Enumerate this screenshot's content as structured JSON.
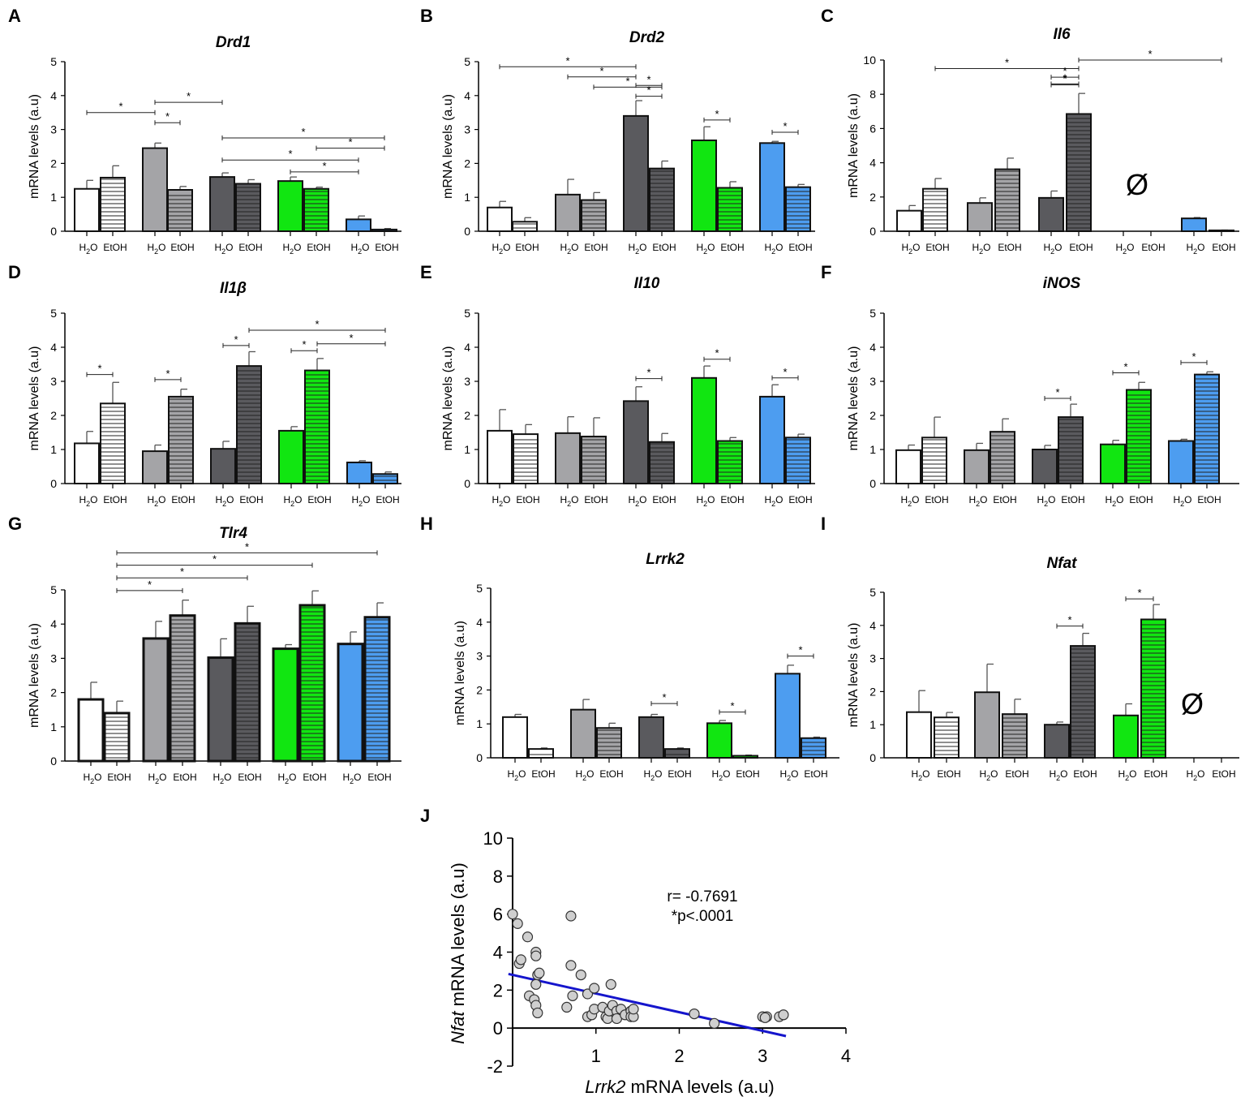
{
  "chart_data": [
    {
      "type": "bar",
      "panel": "A",
      "title": "Drd1",
      "ylabel": "mRNA levels (a.u)",
      "ylim": [
        0,
        5
      ],
      "ticks": [
        0,
        1,
        2,
        3,
        4,
        5
      ],
      "categories": [
        "H2O",
        "EtOH",
        "H2O",
        "EtOH",
        "H2O",
        "EtOH",
        "H2O",
        "EtOH",
        "H2O",
        "EtOH"
      ],
      "values": [
        1.25,
        1.58,
        2.45,
        1.22,
        1.6,
        1.4,
        1.48,
        1.25,
        0.35,
        0.05
      ],
      "errors": [
        0.25,
        0.35,
        0.15,
        0.1,
        0.12,
        0.12,
        0.12,
        0.05,
        0.1,
        0.03
      ],
      "sig": [
        [
          0,
          2,
          3.5
        ],
        [
          2,
          3,
          3.2
        ],
        [
          2,
          4,
          3.8
        ],
        [
          4,
          8,
          2.1
        ],
        [
          6,
          8,
          1.75
        ],
        [
          4,
          9,
          2.75
        ],
        [
          7,
          9,
          2.45
        ]
      ]
    },
    {
      "type": "bar",
      "panel": "B",
      "title": "Drd2",
      "ylabel": "mRNA levels (a.u)",
      "ylim": [
        0,
        5
      ],
      "ticks": [
        0,
        1,
        2,
        3,
        4,
        5
      ],
      "categories": [
        "H2O",
        "EtOH",
        "H2O",
        "EtOH",
        "H2O",
        "EtOH",
        "H2O",
        "EtOH",
        "H2O",
        "EtOH"
      ],
      "values": [
        0.7,
        0.28,
        1.08,
        0.92,
        3.4,
        1.85,
        2.68,
        1.28,
        2.6,
        1.3
      ],
      "errors": [
        0.18,
        0.12,
        0.45,
        0.22,
        0.45,
        0.22,
        0.4,
        0.18,
        0.05,
        0.08
      ],
      "sig": [
        [
          0,
          4,
          4.85
        ],
        [
          2,
          4,
          4.55
        ],
        [
          4,
          5,
          4.3
        ],
        [
          3,
          5,
          4.25
        ],
        [
          4,
          5,
          3.98
        ],
        [
          6,
          7,
          3.28
        ],
        [
          8,
          9,
          2.92
        ]
      ]
    },
    {
      "type": "bar",
      "panel": "C",
      "title": "Il6",
      "ylabel": "mRNA levels (a.u)",
      "ylim": [
        0,
        10
      ],
      "ticks": [
        0,
        2,
        4,
        6,
        8,
        10
      ],
      "categories": [
        "H2O",
        "EtOH",
        "H2O",
        "EtOH",
        "H2O",
        "EtOH",
        "H2O",
        "EtOH",
        "H2O",
        "EtOH"
      ],
      "values": [
        1.2,
        2.48,
        1.65,
        3.62,
        1.95,
        6.85,
        null,
        null,
        0.75,
        0.05
      ],
      "errors": [
        0.3,
        0.6,
        0.3,
        0.65,
        0.4,
        1.2,
        null,
        null,
        0.05,
        0.02
      ],
      "sig": [
        [
          1,
          5,
          9.5
        ],
        [
          4,
          5,
          9.0
        ],
        [
          4,
          5,
          8.55
        ],
        [
          5,
          9,
          10.0
        ],
        [
          4,
          5,
          8.6
        ]
      ],
      "empty_marker": "Ø"
    },
    {
      "type": "bar",
      "panel": "D",
      "title": "Il1β",
      "ylabel": "mRNA levels (a.u)",
      "ylim": [
        0,
        5
      ],
      "ticks": [
        0,
        1,
        2,
        3,
        4,
        5
      ],
      "categories": [
        "H2O",
        "EtOH",
        "H2O",
        "EtOH",
        "H2O",
        "EtOH",
        "H2O",
        "EtOH",
        "H2O",
        "EtOH"
      ],
      "values": [
        1.18,
        2.35,
        0.95,
        2.55,
        1.02,
        3.45,
        1.55,
        3.32,
        0.62,
        0.28
      ],
      "errors": [
        0.35,
        0.62,
        0.18,
        0.22,
        0.22,
        0.42,
        0.12,
        0.35,
        0.05,
        0.06
      ],
      "sig": [
        [
          0,
          1,
          3.2
        ],
        [
          2,
          3,
          3.05
        ],
        [
          4,
          5,
          4.05
        ],
        [
          5,
          9,
          4.5
        ],
        [
          6,
          7,
          3.9
        ],
        [
          7,
          9,
          4.1
        ]
      ]
    },
    {
      "type": "bar",
      "panel": "E",
      "title": "Il10",
      "ylabel": "mRNA levels (a.u)",
      "ylim": [
        0,
        5
      ],
      "ticks": [
        0,
        1,
        2,
        3,
        4,
        5
      ],
      "categories": [
        "H2O",
        "EtOH",
        "H2O",
        "EtOH",
        "H2O",
        "EtOH",
        "H2O",
        "EtOH",
        "H2O",
        "EtOH"
      ],
      "values": [
        1.55,
        1.45,
        1.48,
        1.38,
        2.42,
        1.22,
        3.1,
        1.25,
        2.55,
        1.35
      ],
      "errors": [
        0.62,
        0.28,
        0.48,
        0.55,
        0.42,
        0.25,
        0.35,
        0.1,
        0.35,
        0.1
      ],
      "sig": [
        [
          4,
          5,
          3.08
        ],
        [
          6,
          7,
          3.65
        ],
        [
          8,
          9,
          3.1
        ]
      ]
    },
    {
      "type": "bar",
      "panel": "F",
      "title": "iNOS",
      "ylabel": "mRNA levels (a.u)",
      "ylim": [
        0,
        5
      ],
      "ticks": [
        0,
        1,
        2,
        3,
        4,
        5
      ],
      "categories": [
        "H2O",
        "EtOH",
        "H2O",
        "EtOH",
        "H2O",
        "EtOH",
        "H2O",
        "EtOH",
        "H2O",
        "EtOH"
      ],
      "values": [
        0.98,
        1.35,
        0.98,
        1.52,
        1.0,
        1.95,
        1.15,
        2.75,
        1.25,
        3.2
      ],
      "errors": [
        0.15,
        0.6,
        0.2,
        0.38,
        0.12,
        0.38,
        0.12,
        0.22,
        0.05,
        0.08
      ],
      "sig": [
        [
          4,
          5,
          2.5
        ],
        [
          6,
          7,
          3.25
        ],
        [
          8,
          9,
          3.55
        ]
      ]
    },
    {
      "type": "bar",
      "panel": "G",
      "title": "Tlr4",
      "ylabel": "mRNA levels (a.u)",
      "ylim": [
        0,
        5
      ],
      "ticks": [
        0,
        1,
        2,
        3,
        4,
        5
      ],
      "categories": [
        "H2O",
        "EtOH",
        "H2O",
        "EtOH",
        "H2O",
        "EtOH",
        "H2O",
        "EtOH",
        "H2O",
        "EtOH"
      ],
      "values": [
        1.8,
        1.4,
        3.58,
        4.25,
        3.02,
        4.02,
        3.28,
        4.55,
        3.42,
        4.2
      ],
      "errors": [
        0.5,
        0.35,
        0.5,
        0.45,
        0.55,
        0.5,
        0.12,
        0.42,
        0.35,
        0.42
      ],
      "sig": [
        [
          1,
          3,
          4.98
        ],
        [
          1,
          5,
          5.35
        ],
        [
          1,
          7,
          5.72
        ],
        [
          1,
          9,
          6.08
        ]
      ]
    },
    {
      "type": "bar",
      "panel": "H",
      "title": "Lrrk2",
      "ylabel": "mRNA levels (a.u)",
      "ylim": [
        0,
        5
      ],
      "ticks": [
        0,
        1,
        2,
        3,
        4,
        5
      ],
      "categories": [
        "H2O",
        "EtOH",
        "H2O",
        "EtOH",
        "H2O",
        "EtOH",
        "H2O",
        "EtOH",
        "H2O",
        "EtOH"
      ],
      "values": [
        1.2,
        0.26,
        1.42,
        0.88,
        1.2,
        0.26,
        1.02,
        0.06,
        2.48,
        0.58
      ],
      "errors": [
        0.08,
        0.03,
        0.3,
        0.14,
        0.08,
        0.03,
        0.08,
        0.02,
        0.25,
        0.03
      ],
      "sig": [
        [
          4,
          5,
          1.6
        ],
        [
          6,
          7,
          1.35
        ],
        [
          8,
          9,
          3.0
        ]
      ]
    },
    {
      "type": "bar",
      "panel": "I",
      "title": "Nfat",
      "ylabel": "mRNA levels (a.u)",
      "ylim": [
        0,
        5
      ],
      "ticks": [
        0,
        1,
        2,
        3,
        4,
        5
      ],
      "categories": [
        "H2O",
        "EtOH",
        "H2O",
        "EtOH",
        "H2O",
        "EtOH",
        "H2O",
        "EtOH",
        "H2O",
        "EtOH"
      ],
      "values": [
        1.38,
        1.22,
        1.98,
        1.32,
        1.0,
        3.38,
        1.28,
        4.18,
        null,
        null
      ],
      "errors": [
        0.65,
        0.15,
        0.85,
        0.45,
        0.08,
        0.38,
        0.35,
        0.45,
        null,
        null
      ],
      "sig": [
        [
          4,
          5,
          3.98
        ],
        [
          6,
          7,
          4.8
        ]
      ],
      "empty_marker": "Ø"
    },
    {
      "type": "scatter",
      "panel": "J",
      "xlabel_italic": "Lrrk2",
      "xlabel": " mRNA levels (a.u)",
      "ylabel_italic": "Nfat",
      "ylabel": " mRNA levels (a.u)",
      "xlim": [
        0,
        4
      ],
      "ylim": [
        -2,
        10
      ],
      "xticks": [
        1,
        2,
        3,
        4
      ],
      "yticks": [
        -2,
        0,
        2,
        4,
        6,
        8,
        10
      ],
      "annotation_r": "r= -0.7691",
      "annotation_p": "*p<.0001",
      "fit": {
        "x0": -0.05,
        "y0": 2.85,
        "x1": 3.28,
        "y1": -0.42
      },
      "points": [
        [
          0.0,
          6.0
        ],
        [
          0.06,
          5.5
        ],
        [
          0.08,
          3.4
        ],
        [
          0.1,
          3.6
        ],
        [
          0.18,
          4.8
        ],
        [
          0.28,
          4.0
        ],
        [
          0.28,
          3.8
        ],
        [
          0.3,
          2.8
        ],
        [
          0.32,
          2.9
        ],
        [
          0.28,
          2.3
        ],
        [
          0.2,
          1.7
        ],
        [
          0.26,
          1.5
        ],
        [
          0.28,
          1.2
        ],
        [
          0.3,
          0.8
        ],
        [
          0.7,
          5.9
        ],
        [
          0.7,
          3.3
        ],
        [
          0.82,
          2.8
        ],
        [
          0.9,
          1.8
        ],
        [
          0.98,
          2.1
        ],
        [
          0.72,
          1.7
        ],
        [
          0.65,
          1.1
        ],
        [
          0.9,
          0.6
        ],
        [
          0.95,
          0.7
        ],
        [
          0.98,
          1.0
        ],
        [
          1.08,
          1.1
        ],
        [
          1.12,
          0.6
        ],
        [
          1.14,
          0.5
        ],
        [
          1.16,
          0.9
        ],
        [
          1.18,
          2.3
        ],
        [
          1.2,
          1.2
        ],
        [
          1.25,
          0.9
        ],
        [
          1.25,
          0.5
        ],
        [
          1.3,
          1.0
        ],
        [
          1.35,
          0.7
        ],
        [
          1.42,
          0.9
        ],
        [
          1.42,
          0.6
        ],
        [
          1.45,
          0.6
        ],
        [
          1.45,
          1.0
        ],
        [
          2.18,
          0.75
        ],
        [
          2.42,
          0.25
        ],
        [
          3.0,
          0.6
        ],
        [
          3.05,
          0.6
        ],
        [
          3.03,
          0.55
        ],
        [
          3.2,
          0.6
        ],
        [
          3.25,
          0.7
        ]
      ]
    }
  ],
  "xaxis_labels": {
    "h2o": "H",
    "h2o_sub": "2",
    "h2o_end": "O",
    "etoh": "EtOH"
  }
}
